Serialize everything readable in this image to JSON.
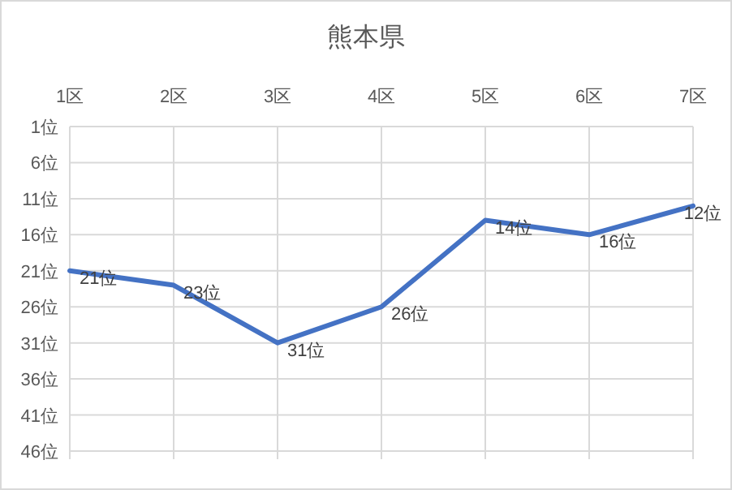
{
  "chart_data": {
    "type": "line",
    "title": "熊本県",
    "categories": [
      "1区",
      "2区",
      "3区",
      "4区",
      "5区",
      "6区",
      "7区"
    ],
    "values": [
      21,
      23,
      31,
      26,
      14,
      16,
      12
    ],
    "value_labels": [
      "21位",
      "23位",
      "31位",
      "26位",
      "14位",
      "16位",
      "12位"
    ],
    "color": "#4472c4",
    "ylim": [
      46,
      1
    ],
    "yticks": [
      {
        "value": 1,
        "label": "1位"
      },
      {
        "value": 6,
        "label": "6位"
      },
      {
        "value": 11,
        "label": "11位"
      },
      {
        "value": 16,
        "label": "16位"
      },
      {
        "value": 21,
        "label": "21位"
      },
      {
        "value": 26,
        "label": "26位"
      },
      {
        "value": 31,
        "label": "31位"
      },
      {
        "value": 36,
        "label": "36位"
      },
      {
        "value": 41,
        "label": "41位"
      },
      {
        "value": 46,
        "label": "46位"
      }
    ],
    "grid": true,
    "marker": "none",
    "line_style": "solid"
  }
}
